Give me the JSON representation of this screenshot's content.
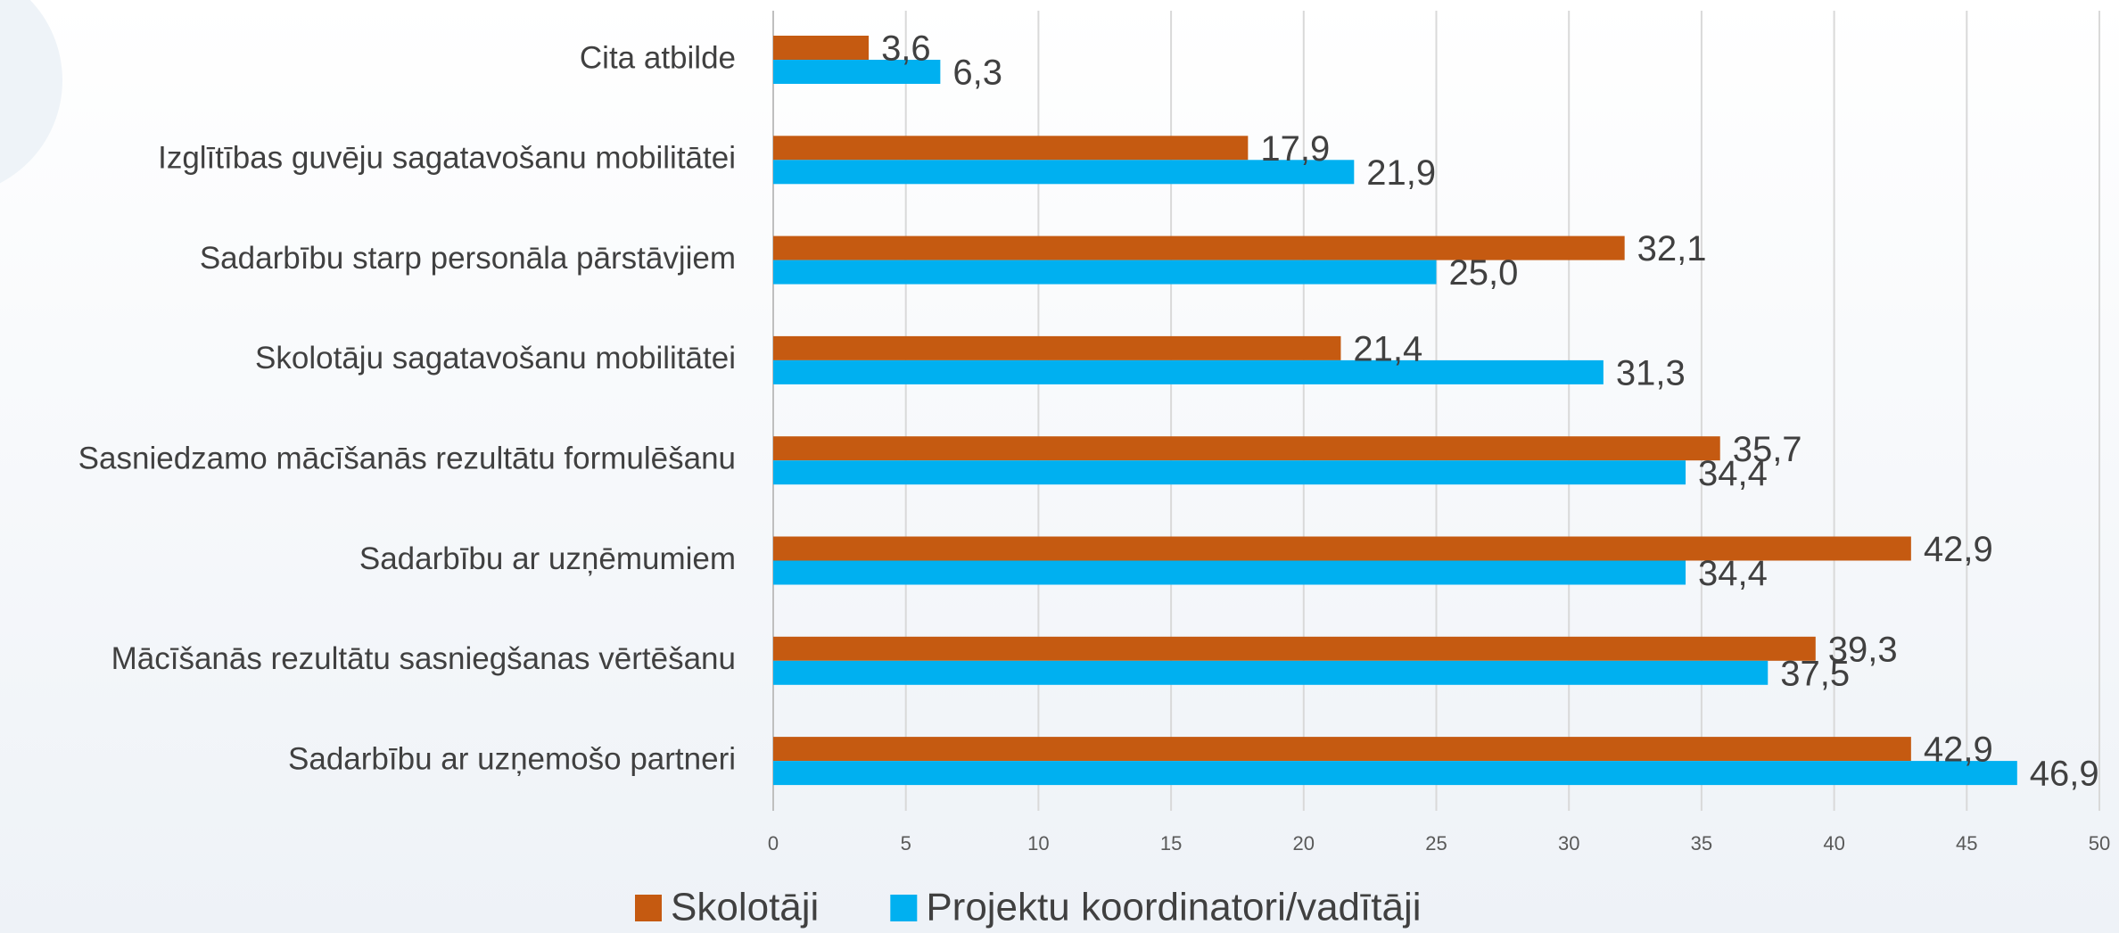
{
  "chart_data": {
    "type": "bar",
    "orientation": "horizontal",
    "categories": [
      "Cita atbilde",
      "Izglītības guvēju sagatavošanu mobilitātei",
      "Sadarbību starp personāla pārstāvjiem",
      "Skolotāju sagatavošanu mobilitātei",
      "Sasniedzamo mācīšanās rezultātu formulēšanu",
      "Sadarbību ar uzņēmumiem",
      "Mācīšanās rezultātu sasniegšanas vērtēšanu",
      "Sadarbību ar uzņemošo partneri"
    ],
    "series": [
      {
        "name": "Skolotāji",
        "color": "#C55A11",
        "values": [
          3.6,
          17.9,
          32.1,
          21.4,
          35.7,
          42.9,
          39.3,
          42.9
        ],
        "value_labels": [
          "3,6",
          "17,9",
          "32,1",
          "21,4",
          "35,7",
          "42,9",
          "39,3",
          "42,9"
        ]
      },
      {
        "name": "Projektu koordinatori/vadītāji",
        "color": "#00B0F0",
        "values": [
          6.3,
          21.9,
          25.0,
          31.3,
          34.4,
          34.4,
          37.5,
          46.9
        ],
        "value_labels": [
          "6,3",
          "21,9",
          "25,0",
          "31,3",
          "34,4",
          "34,4",
          "37,5",
          "46,9"
        ]
      }
    ],
    "xlim": [
      0,
      50
    ],
    "xticks": [
      0,
      5,
      10,
      15,
      20,
      25,
      30,
      35,
      40,
      45,
      50
    ],
    "grid": true,
    "legend": "bottom"
  }
}
